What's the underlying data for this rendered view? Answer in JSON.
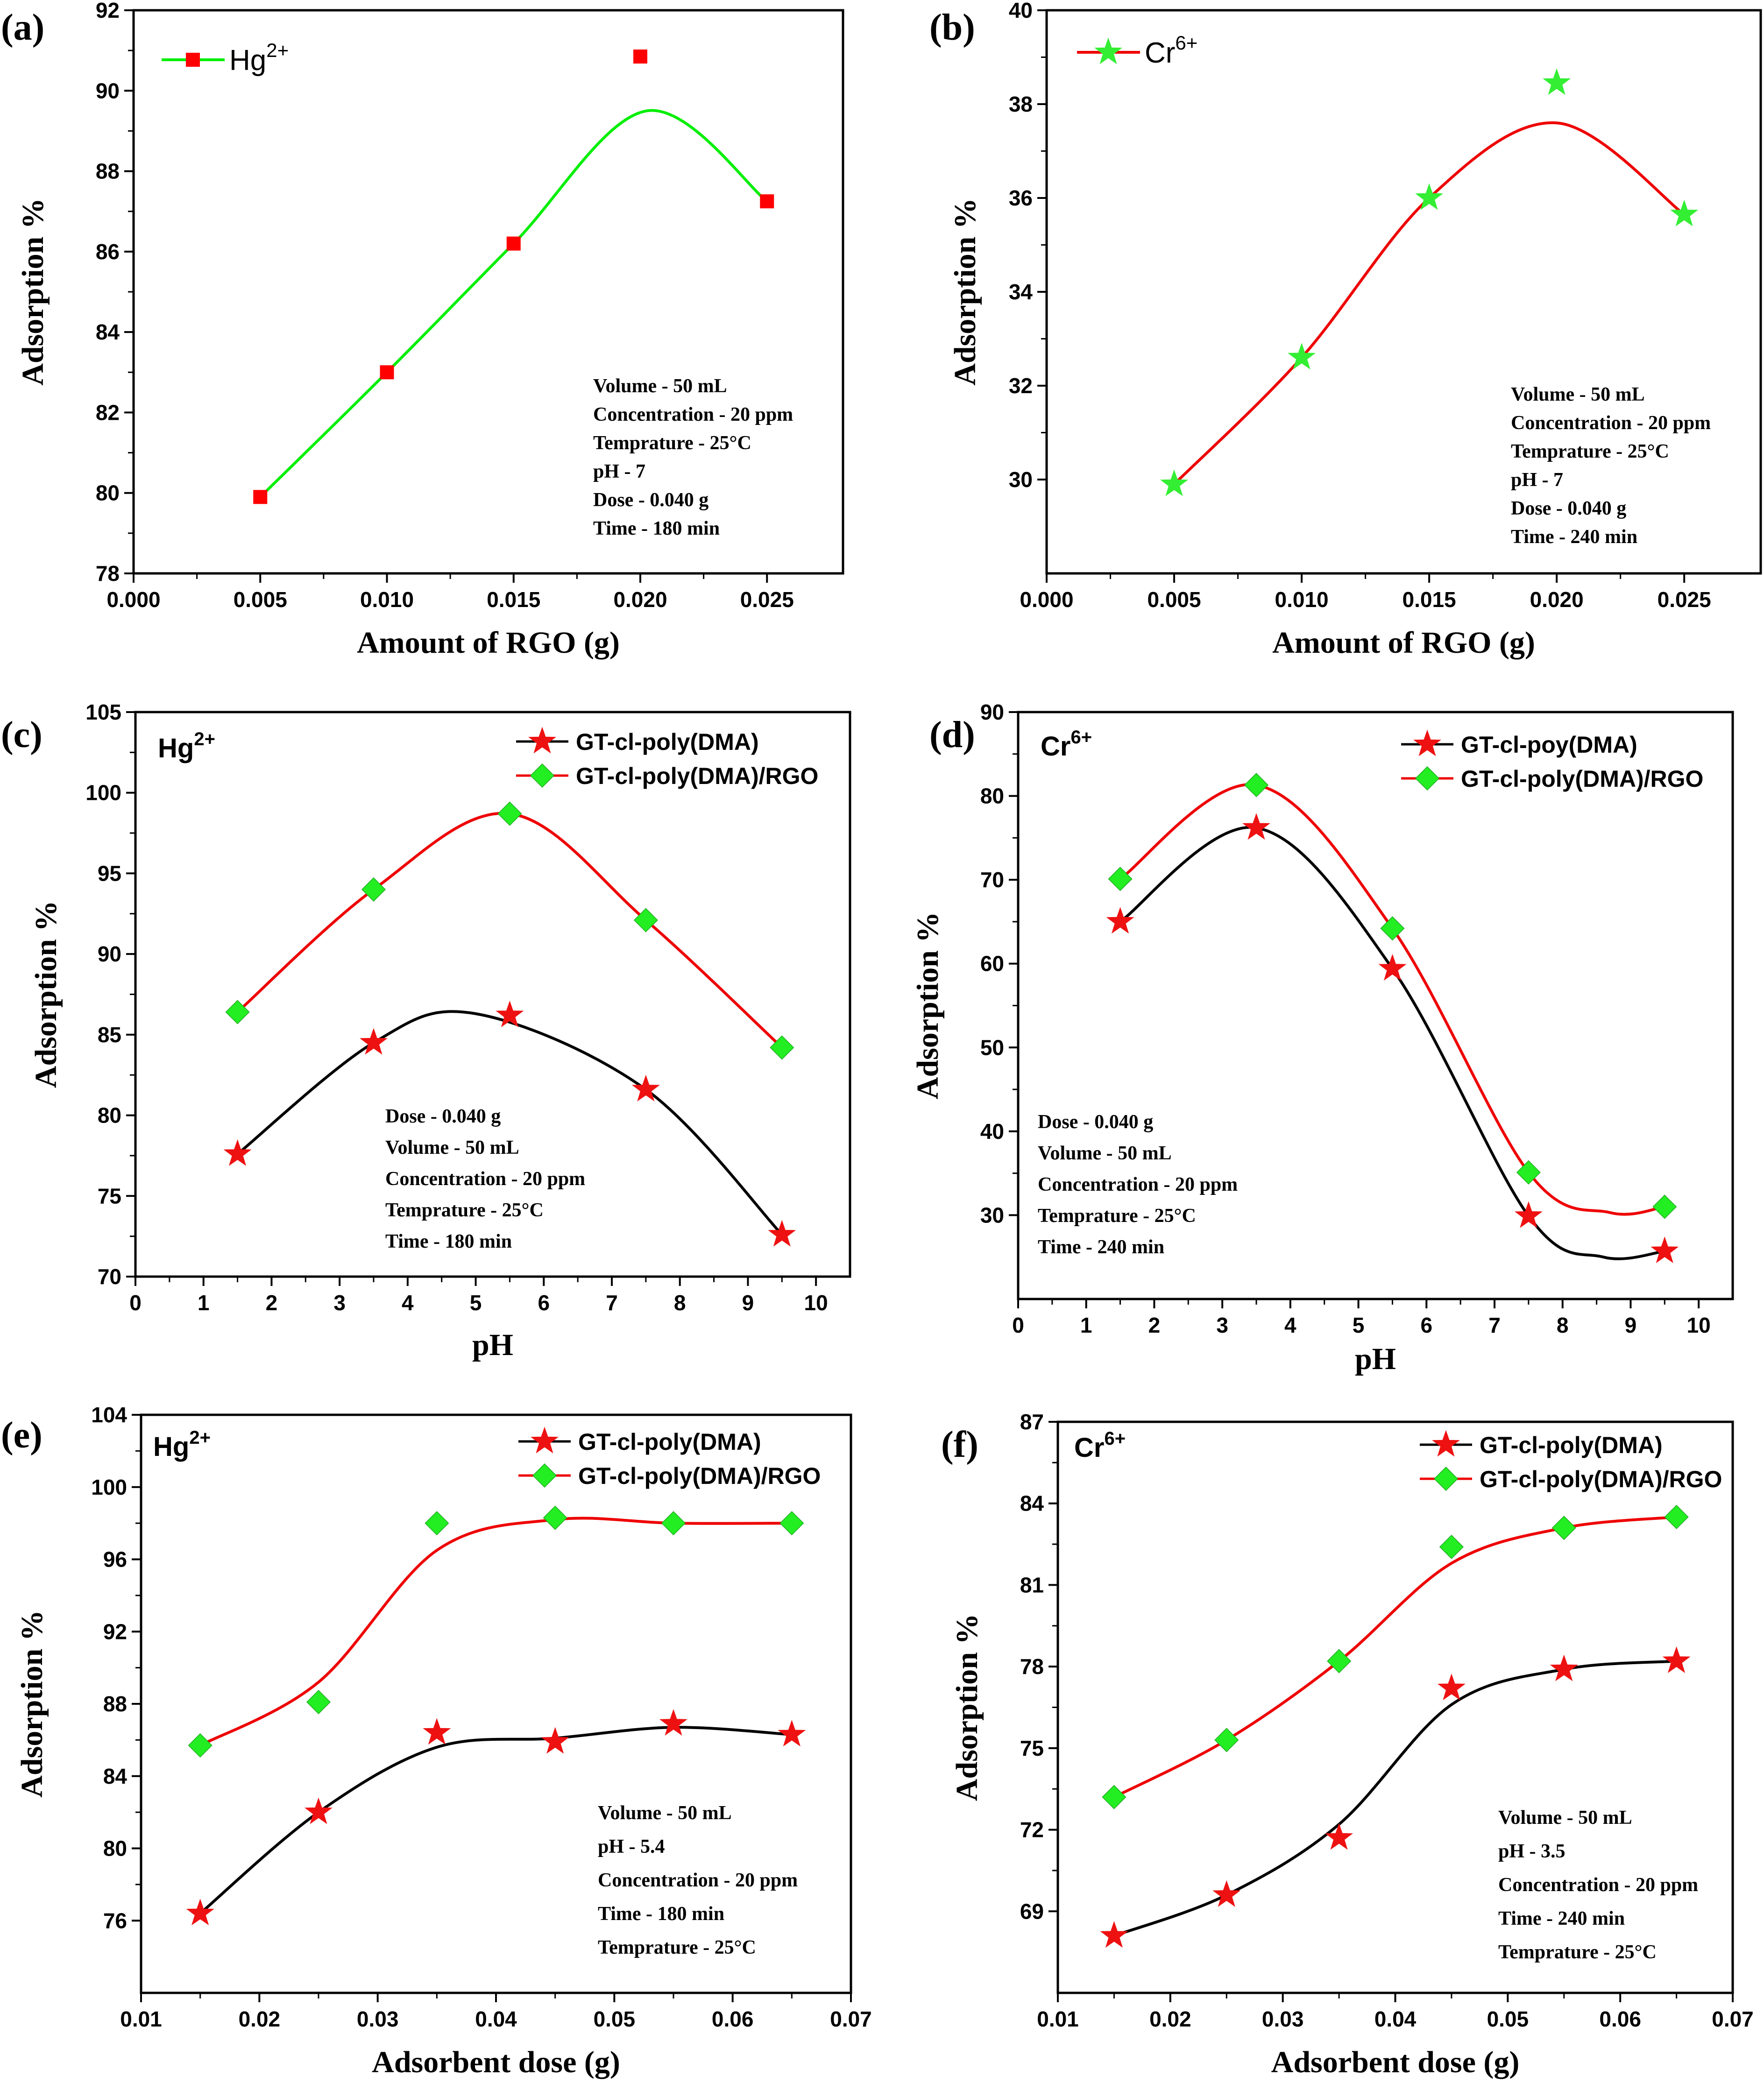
{
  "chart_data": [
    {
      "id": "a",
      "type": "scatter",
      "panel_label": "(a)",
      "title": "",
      "xlabel": "Amount of RGO (g)",
      "ylabel": "Adsorption %",
      "xlim": [
        0.0,
        0.028
      ],
      "ylim": [
        78,
        92
      ],
      "xticks": [
        0.0,
        0.005,
        0.01,
        0.015,
        0.02,
        0.025
      ],
      "xtick_labels": [
        "0.000",
        "0.005",
        "0.010",
        "0.015",
        "0.020",
        "0.025"
      ],
      "yticks": [
        78,
        80,
        82,
        84,
        86,
        88,
        90,
        92
      ],
      "ytick_labels": [
        "78",
        "80",
        "82",
        "84",
        "86",
        "88",
        "90",
        "92"
      ],
      "legend_position": "top-left",
      "series": [
        {
          "name": "Hg2+",
          "legend_main": "Hg",
          "legend_sup": "2+",
          "marker": "square",
          "marker_color": "#ff0000",
          "line_color": "#00ee00",
          "x": [
            0.005,
            0.01,
            0.015,
            0.02,
            0.025
          ],
          "y": [
            79.9,
            83.0,
            86.2,
            90.85,
            87.25
          ],
          "fit_x": [
            0.005,
            0.01,
            0.015,
            0.02025,
            0.025
          ],
          "fit_y": [
            79.9,
            83.0,
            86.2,
            89.5,
            87.25
          ]
        }
      ],
      "annotations": [
        "Volume - 50 mL",
        "Concentration - 20 ppm",
        "Temprature - 25°C",
        "pH - 7",
        "Dose - 0.040 g",
        "Time - 180 min"
      ]
    },
    {
      "id": "b",
      "type": "scatter",
      "panel_label": "(b)",
      "title": "",
      "xlabel": "Amount of RGO (g)",
      "ylabel": "Adsorption %",
      "xlim": [
        0.0,
        0.028
      ],
      "ylim": [
        28,
        40
      ],
      "xticks": [
        0.0,
        0.005,
        0.01,
        0.015,
        0.02,
        0.025
      ],
      "xtick_labels": [
        "0.000",
        "0.005",
        "0.010",
        "0.015",
        "0.020",
        "0.025"
      ],
      "yticks": [
        30,
        32,
        34,
        36,
        38,
        40
      ],
      "ytick_labels": [
        "30",
        "32",
        "34",
        "36",
        "38",
        "40"
      ],
      "legend_position": "top-left",
      "series": [
        {
          "name": "Cr6+",
          "legend_main": "Cr",
          "legend_sup": "6+",
          "marker": "star",
          "marker_color": "#33ee33",
          "line_color": "#ee0000",
          "x": [
            0.005,
            0.01,
            0.015,
            0.02,
            0.025
          ],
          "y": [
            29.9,
            32.6,
            36.0,
            38.45,
            35.65
          ],
          "fit_x": [
            0.005,
            0.01,
            0.015,
            0.02,
            0.025
          ],
          "fit_y": [
            29.9,
            32.6,
            36.0,
            37.6,
            35.65
          ]
        }
      ],
      "annotations": [
        "Volume - 50 mL",
        "Concentration - 20 ppm",
        "Temprature - 25°C",
        "pH - 7",
        "Dose - 0.040 g",
        "Time  - 240 min"
      ]
    },
    {
      "id": "c",
      "type": "scatter",
      "panel_label": "(c)",
      "title_main": "Hg",
      "title_sup": "2+",
      "xlabel": "pH",
      "ylabel": "Adsorption %",
      "xlim": [
        0,
        10.5
      ],
      "ylim": [
        70,
        105
      ],
      "xticks": [
        0,
        1,
        2,
        3,
        4,
        5,
        6,
        7,
        8,
        9,
        10
      ],
      "xtick_labels": [
        "0",
        "1",
        "2",
        "3",
        "4",
        "5",
        "6",
        "7",
        "8",
        "9",
        "10"
      ],
      "yticks": [
        70,
        75,
        80,
        85,
        90,
        95,
        100,
        105
      ],
      "ytick_labels": [
        "70",
        "75",
        "80",
        "85",
        "90",
        "95",
        "100",
        "105"
      ],
      "legend_position": "top-right",
      "series": [
        {
          "name": "GT-cl-poly(DMA)",
          "marker": "star",
          "marker_color": "#ee1111",
          "line_color": "#000000",
          "x": [
            1.5,
            3.5,
            5.5,
            7.5,
            9.5
          ],
          "y": [
            77.6,
            84.5,
            86.2,
            81.6,
            72.6
          ],
          "fit_x": [
            1.5,
            3.5,
            5.0,
            7.5,
            9.5
          ],
          "fit_y": [
            77.6,
            84.5,
            86.3,
            81.6,
            72.6
          ]
        },
        {
          "name": "GT-cl-poly(DMA)/RGO",
          "marker": "diamond",
          "marker_color": "#22ee22",
          "line_color": "#ee0000",
          "x": [
            1.5,
            3.5,
            5.5,
            7.5,
            9.5
          ],
          "y": [
            86.4,
            94.0,
            98.7,
            92.1,
            84.2
          ],
          "fit_x": [
            1.5,
            3.5,
            5.5,
            7.5,
            9.5
          ],
          "fit_y": [
            86.4,
            94.0,
            98.7,
            92.1,
            84.2
          ]
        }
      ],
      "annotations": [
        "Dose - 0.040 g",
        "Volume - 50 mL",
        "Concentration - 20 ppm",
        "Temprature - 25°C",
        "Time  - 180 min"
      ]
    },
    {
      "id": "d",
      "type": "scatter",
      "panel_label": "(d)",
      "title_main": "Cr",
      "title_sup": "6+",
      "xlabel": "pH",
      "ylabel": "Adsorption %",
      "xlim": [
        0,
        10.5
      ],
      "ylim": [
        20,
        90
      ],
      "xticks": [
        0,
        1,
        2,
        3,
        4,
        5,
        6,
        7,
        8,
        9,
        10
      ],
      "xtick_labels": [
        "0",
        "1",
        "2",
        "3",
        "4",
        "5",
        "6",
        "7",
        "8",
        "9",
        "10"
      ],
      "yticks": [
        30,
        40,
        50,
        60,
        70,
        80,
        90
      ],
      "ytick_labels": [
        "30",
        "40",
        "50",
        "60",
        "70",
        "80",
        "90"
      ],
      "legend_position": "top-right",
      "series": [
        {
          "name": "GT-cl-poy(DMA)",
          "marker": "star",
          "marker_color": "#ee1111",
          "line_color": "#000000",
          "x": [
            1.5,
            3.5,
            5.5,
            7.5,
            9.5
          ],
          "y": [
            65.0,
            76.2,
            59.4,
            29.9,
            25.7
          ],
          "fit_x": [
            1.5,
            3.5,
            5.5,
            7.5,
            8.6,
            9.5
          ],
          "fit_y": [
            65.0,
            76.2,
            59.4,
            29.9,
            25.0,
            25.7
          ]
        },
        {
          "name": "GT-cl-poly(DMA)/RGO",
          "marker": "diamond",
          "marker_color": "#22ee22",
          "line_color": "#ee0000",
          "x": [
            1.5,
            3.5,
            5.5,
            7.5,
            9.5
          ],
          "y": [
            70.1,
            81.3,
            64.2,
            35.1,
            31.0
          ],
          "fit_x": [
            1.5,
            3.5,
            5.5,
            7.5,
            8.7,
            9.5
          ],
          "fit_y": [
            70.1,
            81.3,
            64.2,
            35.1,
            30.3,
            31.0
          ]
        }
      ],
      "annotations": [
        "Dose - 0.040 g",
        "Volume - 50 mL",
        "Concentration - 20 ppm",
        "Temprature - 25°C",
        "Time  - 240 min"
      ]
    },
    {
      "id": "e",
      "type": "scatter",
      "panel_label": "(e)",
      "title_main": "Hg",
      "title_sup": "2+",
      "xlabel": "Adsorbent dose (g)",
      "ylabel": "Adsorption %",
      "xlim": [
        0.01,
        0.07
      ],
      "ylim": [
        72,
        104
      ],
      "xticks": [
        0.01,
        0.02,
        0.03,
        0.04,
        0.05,
        0.06,
        0.07
      ],
      "xtick_labels": [
        "0.01",
        "0.02",
        "0.03",
        "0.04",
        "0.05",
        "0.06",
        "0.07"
      ],
      "yticks": [
        76,
        80,
        84,
        88,
        92,
        96,
        100,
        104
      ],
      "ytick_labels": [
        "76",
        "80",
        "84",
        "88",
        "92",
        "96",
        "100",
        "104"
      ],
      "legend_position": "top-right",
      "series": [
        {
          "name": "GT-cl-poly(DMA)",
          "marker": "star",
          "marker_color": "#ee1111",
          "line_color": "#000000",
          "x": [
            0.015,
            0.025,
            0.035,
            0.045,
            0.055,
            0.065
          ],
          "y": [
            76.4,
            82.0,
            86.4,
            85.9,
            86.9,
            86.3
          ],
          "fit_x": [
            0.015,
            0.025,
            0.035,
            0.045,
            0.055,
            0.065
          ],
          "fit_y": [
            76.4,
            82.0,
            85.6,
            86.1,
            86.7,
            86.3
          ]
        },
        {
          "name": "GT-cl-poly(DMA)/RGO",
          "marker": "diamond",
          "marker_color": "#22ee22",
          "line_color": "#ee0000",
          "x": [
            0.015,
            0.025,
            0.035,
            0.045,
            0.055,
            0.065
          ],
          "y": [
            85.7,
            88.1,
            98.0,
            98.3,
            98.0,
            98.0
          ],
          "fit_x": [
            0.015,
            0.025,
            0.035,
            0.045,
            0.055,
            0.065
          ],
          "fit_y": [
            85.7,
            89.2,
            96.5,
            98.2,
            98.0,
            98.0
          ]
        }
      ],
      "annotations": [
        "Volume - 50 mL",
        "pH - 5.4",
        "Concentration - 20 ppm",
        "Time - 180 min",
        "Temprature - 25°C"
      ]
    },
    {
      "id": "f",
      "type": "scatter",
      "panel_label": "(f)",
      "title_main": "Cr",
      "title_sup": "6+",
      "xlabel": "Adsorbent dose (g)",
      "ylabel": "Adsorption %",
      "xlim": [
        0.01,
        0.07
      ],
      "ylim": [
        66,
        87
      ],
      "xticks": [
        0.01,
        0.02,
        0.03,
        0.04,
        0.05,
        0.06,
        0.07
      ],
      "xtick_labels": [
        "0.01",
        "0.02",
        "0.03",
        "0.04",
        "0.05",
        "0.06",
        "0.07"
      ],
      "yticks": [
        69,
        72,
        75,
        78,
        81,
        84,
        87
      ],
      "ytick_labels": [
        "69",
        "72",
        "75",
        "78",
        "81",
        "84",
        "87"
      ],
      "legend_position": "top-right",
      "series": [
        {
          "name": "GT-cl-poly(DMA)",
          "marker": "star",
          "marker_color": "#ee1111",
          "line_color": "#000000",
          "x": [
            0.015,
            0.025,
            0.035,
            0.045,
            0.055,
            0.065
          ],
          "y": [
            68.1,
            69.6,
            71.7,
            77.2,
            77.9,
            78.2
          ],
          "fit_x": [
            0.015,
            0.025,
            0.035,
            0.045,
            0.055,
            0.065
          ],
          "fit_y": [
            68.1,
            69.6,
            72.2,
            76.6,
            77.9,
            78.2
          ]
        },
        {
          "name": "GT-cl-poly(DMA)/RGO",
          "marker": "diamond",
          "marker_color": "#22ee22",
          "line_color": "#ee0000",
          "x": [
            0.015,
            0.025,
            0.035,
            0.045,
            0.055,
            0.065
          ],
          "y": [
            73.2,
            75.3,
            78.2,
            82.4,
            83.1,
            83.5
          ],
          "fit_x": [
            0.015,
            0.025,
            0.035,
            0.045,
            0.055,
            0.065
          ],
          "fit_y": [
            73.2,
            75.3,
            78.2,
            81.8,
            83.1,
            83.5
          ]
        }
      ],
      "annotations": [
        "Volume - 50 mL",
        "pH - 3.5",
        "Concentration - 20 ppm",
        "Time - 240 min",
        "Temprature - 25°C"
      ]
    }
  ]
}
